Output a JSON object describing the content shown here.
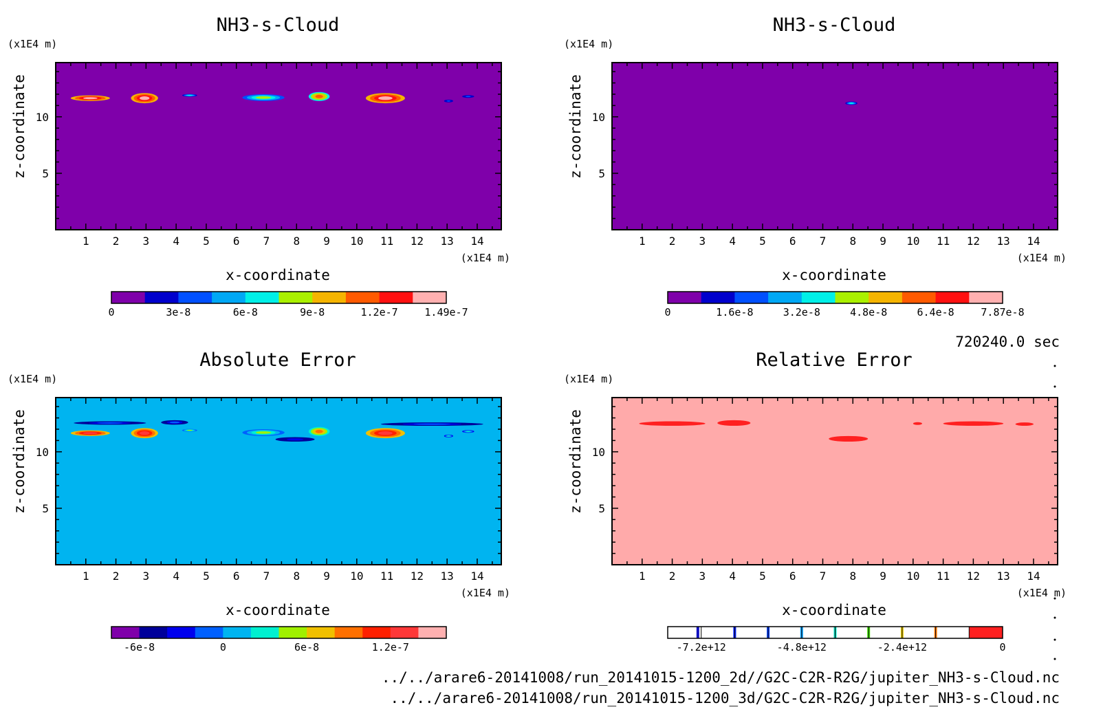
{
  "time_label": "720240.0 sec",
  "file_paths": [
    "../../arare6-20141008/run_20141015-1200_2d//G2C-C2R-R2G/jupiter_NH3-s-Cloud.nc",
    "../../arare6-20141008/run_20141015-1200_3d/G2C-C2R-R2G/jupiter_NH3-s-Cloud.nc"
  ],
  "chart_data": [
    {
      "type": "heatmap",
      "title": "NH3-s-Cloud",
      "xlabel": "x-coordinate",
      "ylabel": "z-coordinate",
      "x_unit": "(x1E4 m)",
      "y_unit": "(x1E4 m)",
      "xlim": [
        0,
        14.8
      ],
      "ylim": [
        0,
        14.8
      ],
      "x_ticks": [
        1,
        2,
        3,
        4,
        5,
        6,
        7,
        8,
        9,
        10,
        11,
        12,
        13,
        14
      ],
      "y_ticks": [
        5,
        10
      ],
      "background_color": "#7f00aa",
      "colorbar": {
        "colors": [
          "#7f00aa",
          "#0000cc",
          "#0050ff",
          "#00a8f5",
          "#00f0e8",
          "#aaf000",
          "#f5b400",
          "#ff5a00",
          "#ff1010",
          "#ffb0b0"
        ],
        "tick_labels": [
          "0",
          "3e-8",
          "6e-8",
          "9e-8",
          "1.2e-7",
          "1.49e-7"
        ],
        "tick_positions": [
          0,
          2,
          4,
          6,
          8,
          10
        ]
      },
      "features": [
        {
          "x": [
            0.5,
            1.8
          ],
          "z": [
            11.9,
            11.4
          ],
          "level": 9
        },
        {
          "x": [
            2.5,
            3.4
          ],
          "z": [
            12.1,
            11.2
          ],
          "level": 9
        },
        {
          "x": [
            4.2,
            4.7
          ],
          "z": [
            12.0,
            11.8
          ],
          "level": 4
        },
        {
          "x": [
            6.2,
            7.6
          ],
          "z": [
            12.0,
            11.4
          ],
          "level": 5
        },
        {
          "x": [
            8.4,
            9.1
          ],
          "z": [
            12.2,
            11.4
          ],
          "level": 7
        },
        {
          "x": [
            10.3,
            11.6
          ],
          "z": [
            12.1,
            11.2
          ],
          "level": 9
        },
        {
          "x": [
            12.9,
            13.2
          ],
          "z": [
            11.5,
            11.3
          ],
          "level": 2
        },
        {
          "x": [
            13.5,
            13.9
          ],
          "z": [
            11.9,
            11.7
          ],
          "level": 2
        }
      ]
    },
    {
      "type": "heatmap",
      "title": "NH3-s-Cloud",
      "xlabel": "x-coordinate",
      "ylabel": "z-coordinate",
      "x_unit": "(x1E4 m)",
      "y_unit": "(x1E4 m)",
      "xlim": [
        0,
        14.8
      ],
      "ylim": [
        0,
        14.8
      ],
      "x_ticks": [
        1,
        2,
        3,
        4,
        5,
        6,
        7,
        8,
        9,
        10,
        11,
        12,
        13,
        14
      ],
      "y_ticks": [
        5,
        10
      ],
      "background_color": "#7f00aa",
      "colorbar": {
        "colors": [
          "#7f00aa",
          "#0000cc",
          "#0050ff",
          "#00a8f5",
          "#00f0e8",
          "#aaf000",
          "#f5b400",
          "#ff5a00",
          "#ff1010",
          "#ffb0b0"
        ],
        "tick_labels": [
          "0",
          "1.6e-8",
          "3.2e-8",
          "4.8e-8",
          "6.4e-8",
          "7.87e-8"
        ],
        "tick_positions": [
          0,
          2,
          4,
          6,
          8,
          10
        ]
      },
      "features": [
        {
          "x": [
            7.75,
            8.15
          ],
          "z": [
            11.35,
            11.05
          ],
          "level": 4
        }
      ]
    },
    {
      "type": "heatmap",
      "title": "Absolute Error",
      "xlabel": "x-coordinate",
      "ylabel": "z-coordinate",
      "x_unit": "(x1E4 m)",
      "y_unit": "(x1E4 m)",
      "xlim": [
        0,
        14.8
      ],
      "ylim": [
        0,
        14.8
      ],
      "x_ticks": [
        1,
        2,
        3,
        4,
        5,
        6,
        7,
        8,
        9,
        10,
        11,
        12,
        13,
        14
      ],
      "y_ticks": [
        5,
        10
      ],
      "background_color": "#00b4f0",
      "colorbar": {
        "colors": [
          "#7f00aa",
          "#00009a",
          "#0000ee",
          "#0060ff",
          "#00b4f0",
          "#00f0d0",
          "#a0f000",
          "#f0c000",
          "#ff7000",
          "#ff2000",
          "#ff3838",
          "#ffb0b0"
        ],
        "tick_labels": [
          "-6e-8",
          "0",
          "6e-8",
          "1.2e-7"
        ],
        "tick_positions": [
          1,
          4,
          7,
          10
        ]
      },
      "features": [
        {
          "x": [
            0.6,
            3.0
          ],
          "z": [
            12.7,
            12.4
          ],
          "level": 3
        },
        {
          "x": [
            3.5,
            4.4
          ],
          "z": [
            12.8,
            12.4
          ],
          "level": 3
        },
        {
          "x": [
            10.8,
            14.2
          ],
          "z": [
            12.6,
            12.3
          ],
          "level": 3
        },
        {
          "x": [
            0.5,
            1.8
          ],
          "z": [
            11.9,
            11.4
          ],
          "level": 10
        },
        {
          "x": [
            2.5,
            3.4
          ],
          "z": [
            12.1,
            11.2
          ],
          "level": 10
        },
        {
          "x": [
            4.2,
            4.7
          ],
          "z": [
            12.0,
            11.8
          ],
          "level": 6
        },
        {
          "x": [
            6.2,
            7.6
          ],
          "z": [
            12.0,
            11.4
          ],
          "level": 6
        },
        {
          "x": [
            7.3,
            8.6
          ],
          "z": [
            11.3,
            10.9
          ],
          "level": 2
        },
        {
          "x": [
            8.4,
            9.1
          ],
          "z": [
            12.2,
            11.4
          ],
          "level": 8
        },
        {
          "x": [
            10.3,
            11.6
          ],
          "z": [
            12.1,
            11.2
          ],
          "level": 10
        },
        {
          "x": [
            12.9,
            13.2
          ],
          "z": [
            11.5,
            11.3
          ],
          "level": 5
        },
        {
          "x": [
            13.5,
            13.9
          ],
          "z": [
            11.9,
            11.7
          ],
          "level": 5
        }
      ]
    },
    {
      "type": "heatmap",
      "title": "Relative Error",
      "xlabel": "x-coordinate",
      "ylabel": "z-coordinate",
      "x_unit": "(x1E4 m)",
      "y_unit": "(x1E4 m)",
      "xlim": [
        0,
        14.8
      ],
      "ylim": [
        0,
        14.8
      ],
      "x_ticks": [
        1,
        2,
        3,
        4,
        5,
        6,
        7,
        8,
        9,
        10,
        11,
        12,
        13,
        14
      ],
      "y_ticks": [
        5,
        10
      ],
      "background_color": "#ffaaaa",
      "colorbar": {
        "colors": [
          "#ffffff",
          "#ffffff",
          "#ffffff",
          "#ffffff",
          "#ffffff",
          "#ffffff",
          "#ffffff",
          "#ffffff",
          "#ffffff",
          "#ff2020"
        ],
        "stripes": [
          {
            "at": 0.9,
            "color": "#1010c0"
          },
          {
            "at": 2.0,
            "color": "#0020ff"
          },
          {
            "at": 3.0,
            "color": "#0040ff"
          },
          {
            "at": 4.0,
            "color": "#00a0ff"
          },
          {
            "at": 5.0,
            "color": "#00e0c0"
          },
          {
            "at": 6.0,
            "color": "#40e000"
          },
          {
            "at": 7.0,
            "color": "#f0d000"
          },
          {
            "at": 8.0,
            "color": "#ff7a00"
          }
        ],
        "tick_labels": [
          "-7.2e+12",
          "-4.8e+12",
          "-2.4e+12",
          "0"
        ],
        "tick_positions": [
          1,
          4,
          7,
          10
        ]
      },
      "features": [
        {
          "x": [
            0.9,
            3.1
          ],
          "z": [
            12.7,
            12.3
          ],
          "level": 9
        },
        {
          "x": [
            3.5,
            4.6
          ],
          "z": [
            12.8,
            12.3
          ],
          "level": 9
        },
        {
          "x": [
            7.2,
            8.5
          ],
          "z": [
            11.4,
            10.9
          ],
          "level": 9
        },
        {
          "x": [
            10.0,
            10.3
          ],
          "z": [
            12.6,
            12.4
          ],
          "level": 9
        },
        {
          "x": [
            11.0,
            13.0
          ],
          "z": [
            12.7,
            12.3
          ],
          "level": 9
        },
        {
          "x": [
            13.4,
            14.0
          ],
          "z": [
            12.6,
            12.3
          ],
          "level": 9
        }
      ]
    }
  ]
}
